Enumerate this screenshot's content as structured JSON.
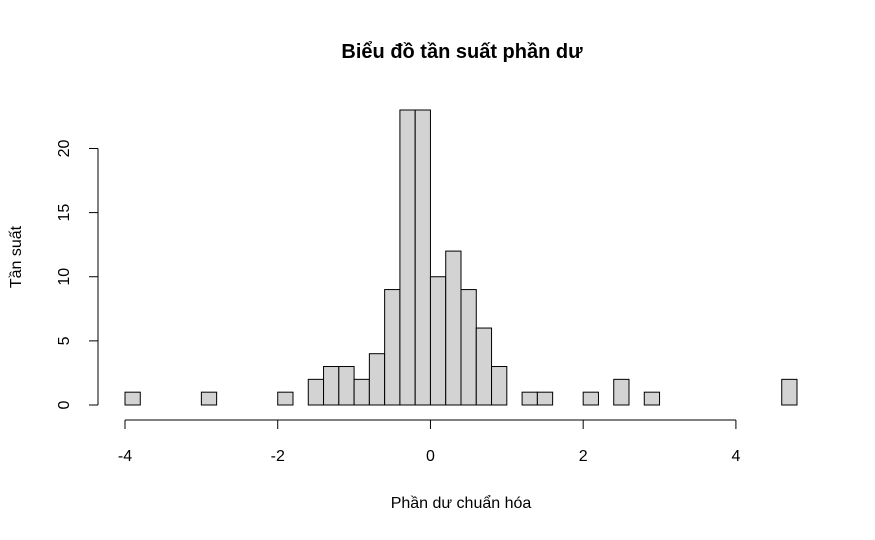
{
  "chart_data": {
    "type": "bar",
    "title": "Biểu đồ tần suất phần dư",
    "xlabel": "Phần dư chuẩn hóa",
    "ylabel": "Tần suất",
    "bin_width": 0.2,
    "bin_starts": [
      -4.0,
      -3.0,
      -2.0,
      -1.6,
      -1.4,
      -1.2,
      -1.0,
      -0.8,
      -0.6,
      -0.4,
      -0.2,
      0.0,
      0.2,
      0.4,
      0.6,
      0.8,
      1.2,
      1.4,
      2.0,
      2.4,
      2.8,
      4.6
    ],
    "values": [
      1,
      1,
      1,
      2,
      3,
      3,
      2,
      4,
      9,
      23,
      23,
      10,
      12,
      9,
      6,
      3,
      1,
      1,
      1,
      2,
      1,
      2
    ],
    "xlim": [
      -4.0,
      4.8
    ],
    "ylim": [
      0,
      23
    ],
    "x_ticks": [
      -4,
      -2,
      0,
      2,
      4
    ],
    "y_ticks": [
      0,
      5,
      10,
      15,
      20
    ],
    "x_tick_labels": [
      "-4",
      "-2",
      "0",
      "2",
      "4"
    ],
    "y_tick_labels": [
      "0",
      "5",
      "10",
      "15",
      "20"
    ],
    "grid": false,
    "legend": "none",
    "bar_color": "#d3d3d3",
    "edge_color": "#000000"
  }
}
